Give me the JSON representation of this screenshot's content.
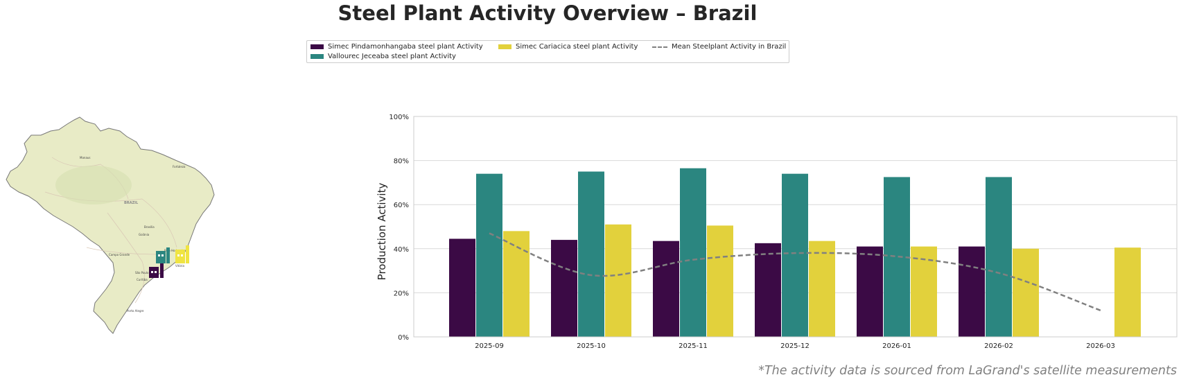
{
  "title": "Steel Plant Activity Overview – Brazil",
  "footnote": "*The activity data is sourced from LaGrand's satellite measurements",
  "legend": [
    {
      "label": "Simec Pindamonhangaba steel plant Activity",
      "color": "#3b0a45"
    },
    {
      "label": "Vallourec Jeceaba steel plant Activity",
      "color": "#2b8680"
    },
    {
      "label": "Simec Cariacica steel plant Activity",
      "color": "#e2d13c"
    },
    {
      "label": "Mean Steelplant Activity in Brazil",
      "color": "#808080"
    }
  ],
  "map": {
    "country_label": "BRAZIL",
    "cities": [
      "Manaus",
      "Fortaleza",
      "Brasília",
      "Goiânia",
      "Campo Grande",
      "Belo Horizonte",
      "São Paulo",
      "Curitiba",
      "Porto Alegre",
      "Vitória"
    ]
  },
  "chart_data": {
    "type": "bar",
    "categories": [
      "2025-09",
      "2025-10",
      "2025-11",
      "2025-12",
      "2026-01",
      "2026-02",
      "2026-03"
    ],
    "series": [
      {
        "name": "Simec Pindamonhangaba steel plant Activity",
        "color": "#3b0a45",
        "values": [
          44.5,
          44,
          43.5,
          42.5,
          41,
          41,
          null
        ]
      },
      {
        "name": "Vallourec Jeceaba steel plant Activity",
        "color": "#2b8680",
        "values": [
          74,
          75,
          76.5,
          74,
          72.5,
          72.5,
          null
        ]
      },
      {
        "name": "Simec Cariacica steel plant Activity",
        "color": "#e2d13c",
        "values": [
          48,
          51,
          50.5,
          43.5,
          41,
          40,
          40.5
        ]
      }
    ],
    "mean_line": {
      "name": "Mean Steelplant Activity in Brazil",
      "color": "#808080",
      "values": [
        47,
        28,
        35,
        38,
        36.5,
        29,
        12
      ]
    },
    "ylabel": "Production Activity",
    "xlabel": "",
    "ylim": [
      0,
      100
    ],
    "yticks": [
      "0%",
      "20%",
      "40%",
      "60%",
      "80%",
      "100%"
    ],
    "grid": true
  }
}
